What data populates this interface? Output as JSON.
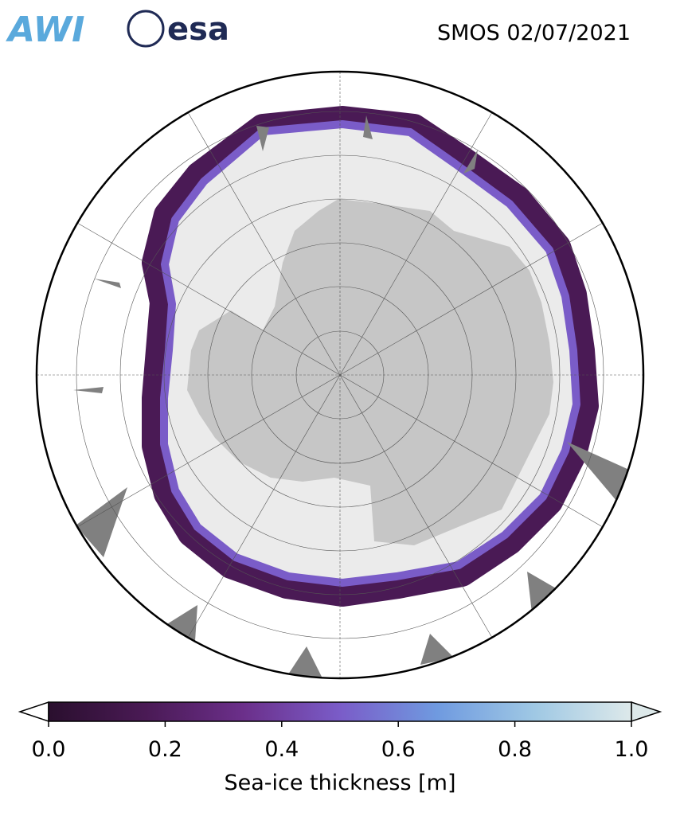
{
  "header": {
    "logo_left": "AWI",
    "logo_right": "esa",
    "title": "SMOS 02/07/2021"
  },
  "colorbar": {
    "label": "Sea-ice thickness [m]",
    "lim": [
      0,
      1
    ],
    "ticks": [
      {
        "value": 0,
        "label": "0.0"
      },
      {
        "value": 0.2,
        "label": "0.2"
      },
      {
        "value": 0.4,
        "label": "0.4"
      },
      {
        "value": 0.6,
        "label": "0.6"
      },
      {
        "value": 0.8,
        "label": "0.8"
      },
      {
        "value": 1,
        "label": "1.0"
      }
    ],
    "colors": [
      "#2a0f2e",
      "#4a1a55",
      "#6b2f8a",
      "#7a5cc8",
      "#6f9ae0",
      "#9fc8e4",
      "#dde9ea"
    ]
  }
}
